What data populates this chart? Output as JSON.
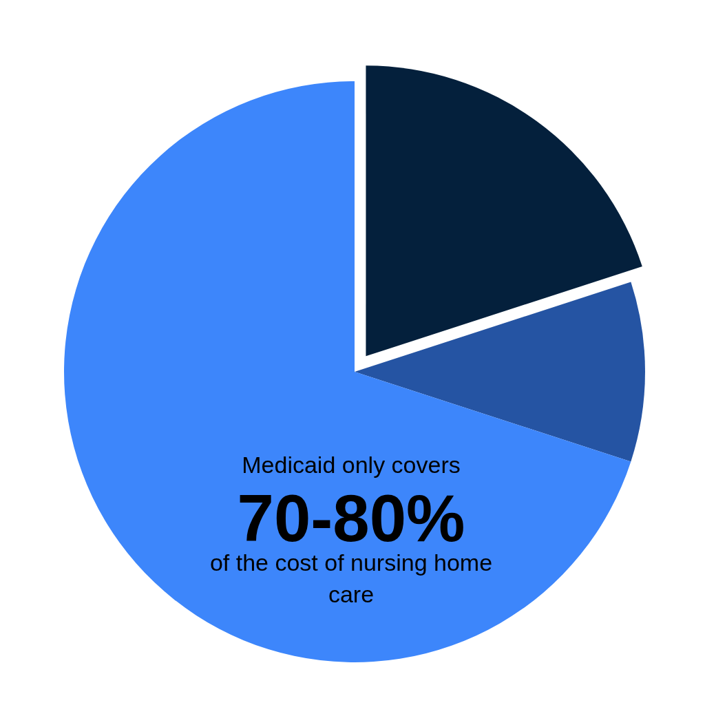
{
  "chart_data": {
    "type": "pie",
    "categories": [
      null,
      null,
      null
    ],
    "values": [
      20,
      10,
      70
    ],
    "colors": [
      "#04203c",
      "#2554a3",
      "#3d86fb"
    ],
    "annotations": [
      "Medicaid only covers",
      "70-80%",
      "of the cost of nursing home care"
    ],
    "legend": false
  }
}
